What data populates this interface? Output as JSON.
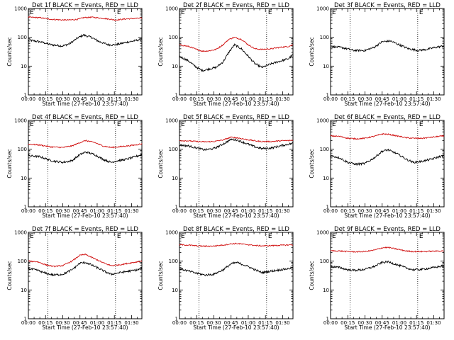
{
  "figure": {
    "x_tick_labels": [
      "00:00",
      "00:15",
      "00:30",
      "00:45",
      "01:00",
      "01:15",
      "01:30"
    ],
    "y_tick_labels": [
      "1",
      "10",
      "100",
      "1000"
    ],
    "x_axis_label": "Start Time (27-Feb-10 23:57:40)",
    "y_axis_label": "Counts/sec",
    "marker_label": "E"
  },
  "chart_data": [
    {
      "type": "line",
      "title": "Det 1f BLACK = Events, RED = LLD",
      "xlabel": "Start Time (27-Feb-10 23:57:40)",
      "ylabel": "Counts/sec",
      "x_unit": "minutes after 00:00",
      "xlim": [
        0,
        99
      ],
      "ylim": [
        1,
        1000
      ],
      "yscale": "log",
      "vlines": [
        17,
        76
      ],
      "series": [
        {
          "color": "#000000",
          "x": [
            0,
            10,
            20,
            30,
            36,
            43,
            48,
            55,
            62,
            70,
            76,
            84,
            92,
            99
          ],
          "values": [
            80,
            70,
            55,
            50,
            60,
            95,
            120,
            100,
            70,
            55,
            55,
            65,
            75,
            85
          ]
        },
        {
          "color": "#d01010",
          "x": [
            0,
            10,
            20,
            30,
            36,
            43,
            48,
            55,
            62,
            70,
            76,
            84,
            92,
            99
          ],
          "values": [
            500,
            480,
            420,
            400,
            400,
            420,
            480,
            500,
            470,
            430,
            400,
            430,
            450,
            460
          ]
        }
      ]
    },
    {
      "type": "line",
      "title": "Det 2f BLACK = Events, RED = LLD",
      "xlabel": "Start Time (27-Feb-10 23:57:40)",
      "ylabel": "Counts/sec",
      "x_unit": "minutes after 00:00",
      "xlim": [
        0,
        99
      ],
      "ylim": [
        1,
        1000
      ],
      "yscale": "log",
      "vlines": [
        17,
        76
      ],
      "series": [
        {
          "color": "#000000",
          "x": [
            0,
            8,
            15,
            20,
            26,
            32,
            38,
            43,
            48,
            54,
            60,
            66,
            72,
            80,
            88,
            95,
            99
          ],
          "values": [
            22,
            15,
            9,
            7,
            8,
            9,
            14,
            30,
            55,
            40,
            22,
            12,
            9,
            12,
            15,
            18,
            25
          ]
        },
        {
          "color": "#d01010",
          "x": [
            0,
            8,
            15,
            20,
            26,
            32,
            38,
            43,
            48,
            54,
            60,
            66,
            72,
            80,
            88,
            95,
            99
          ],
          "values": [
            55,
            48,
            38,
            33,
            34,
            38,
            55,
            85,
            100,
            85,
            55,
            40,
            38,
            40,
            45,
            48,
            55
          ]
        }
      ]
    },
    {
      "type": "line",
      "title": "Det 3f BLACK = Events, RED = LLD",
      "xlabel": "Start Time (27-Feb-10 23:57:40)",
      "ylabel": "Counts/sec",
      "x_unit": "minutes after 00:00",
      "xlim": [
        0,
        99
      ],
      "ylim": [
        1,
        1000
      ],
      "yscale": "log",
      "vlines": [
        17,
        76
      ],
      "series": [
        {
          "color": "#000000",
          "x": [
            0,
            10,
            20,
            30,
            38,
            45,
            52,
            60,
            68,
            76,
            84,
            92,
            99
          ],
          "values": [
            48,
            44,
            35,
            35,
            45,
            70,
            75,
            55,
            40,
            35,
            38,
            45,
            50
          ]
        }
      ]
    },
    {
      "type": "line",
      "title": "Det 4f BLACK = Events, RED = LLD",
      "xlabel": "Start Time (27-Feb-10 23:57:40)",
      "ylabel": "Counts/sec",
      "x_unit": "minutes after 00:00",
      "xlim": [
        0,
        99
      ],
      "ylim": [
        1,
        1000
      ],
      "yscale": "log",
      "vlines": [
        17,
        76
      ],
      "series": [
        {
          "color": "#000000",
          "x": [
            0,
            10,
            20,
            30,
            38,
            45,
            50,
            58,
            65,
            72,
            78,
            86,
            93,
            99
          ],
          "values": [
            60,
            55,
            40,
            35,
            40,
            65,
            80,
            65,
            45,
            35,
            40,
            45,
            55,
            65
          ]
        },
        {
          "color": "#d01010",
          "x": [
            0,
            10,
            20,
            30,
            38,
            45,
            50,
            58,
            65,
            72,
            78,
            86,
            93,
            99
          ],
          "values": [
            150,
            140,
            120,
            115,
            130,
            170,
            200,
            170,
            130,
            115,
            120,
            130,
            140,
            155
          ]
        }
      ]
    },
    {
      "type": "line",
      "title": "Det 5f BLACK = Events, RED = LLD",
      "xlabel": "Start Time (27-Feb-10 23:57:40)",
      "ylabel": "Counts/sec",
      "x_unit": "minutes after 00:00",
      "xlim": [
        0,
        99
      ],
      "ylim": [
        1,
        1000
      ],
      "yscale": "log",
      "vlines": [
        17,
        76
      ],
      "series": [
        {
          "color": "#000000",
          "x": [
            0,
            8,
            15,
            22,
            30,
            38,
            45,
            50,
            58,
            66,
            72,
            80,
            88,
            95,
            99
          ],
          "values": [
            140,
            130,
            110,
            95,
            105,
            150,
            220,
            210,
            160,
            120,
            105,
            110,
            130,
            150,
            160
          ]
        },
        {
          "color": "#d01010",
          "x": [
            0,
            8,
            15,
            22,
            30,
            38,
            45,
            50,
            58,
            66,
            72,
            80,
            88,
            95,
            99
          ],
          "values": [
            200,
            195,
            185,
            180,
            185,
            210,
            260,
            250,
            220,
            195,
            185,
            185,
            195,
            200,
            205
          ]
        }
      ]
    },
    {
      "type": "line",
      "title": "Det 6f BLACK = Events, RED = LLD",
      "xlabel": "Start Time (27-Feb-10 23:57:40)",
      "ylabel": "Counts/sec",
      "x_unit": "minutes after 00:00",
      "xlim": [
        0,
        99
      ],
      "ylim": [
        1,
        1000
      ],
      "yscale": "log",
      "vlines": [
        17,
        76
      ],
      "series": [
        {
          "color": "#000000",
          "x": [
            0,
            8,
            15,
            22,
            30,
            38,
            45,
            50,
            58,
            66,
            72,
            80,
            88,
            95,
            99
          ],
          "values": [
            60,
            50,
            35,
            30,
            32,
            50,
            85,
            95,
            70,
            45,
            35,
            38,
            45,
            55,
            60
          ]
        },
        {
          "color": "#d01010",
          "x": [
            0,
            8,
            15,
            22,
            30,
            38,
            45,
            50,
            58,
            66,
            72,
            80,
            88,
            95,
            99
          ],
          "values": [
            290,
            280,
            240,
            230,
            240,
            280,
            340,
            330,
            290,
            250,
            240,
            240,
            260,
            280,
            290
          ]
        }
      ]
    },
    {
      "type": "line",
      "title": "Det 7f BLACK = Events, RED = LLD",
      "xlabel": "Start Time (27-Feb-10 23:57:40)",
      "ylabel": "Counts/sec",
      "x_unit": "minutes after 00:00",
      "xlim": [
        0,
        99
      ],
      "ylim": [
        1,
        1000
      ],
      "yscale": "log",
      "vlines": [
        17,
        76
      ],
      "series": [
        {
          "color": "#000000",
          "x": [
            0,
            8,
            15,
            22,
            30,
            38,
            45,
            50,
            58,
            66,
            72,
            80,
            88,
            95,
            99
          ],
          "values": [
            55,
            48,
            38,
            33,
            35,
            50,
            85,
            90,
            65,
            45,
            35,
            40,
            45,
            50,
            55
          ]
        },
        {
          "color": "#d01010",
          "x": [
            0,
            8,
            15,
            22,
            30,
            38,
            45,
            50,
            58,
            66,
            72,
            80,
            88,
            95,
            99
          ],
          "values": [
            100,
            95,
            75,
            65,
            70,
            100,
            160,
            170,
            120,
            85,
            70,
            75,
            85,
            95,
            100
          ]
        }
      ]
    },
    {
      "type": "line",
      "title": "Det 8f BLACK = Events, RED = LLD",
      "xlabel": "Start Time (27-Feb-10 23:57:40)",
      "ylabel": "Counts/sec",
      "x_unit": "minutes after 00:00",
      "xlim": [
        0,
        99
      ],
      "ylim": [
        1,
        1000
      ],
      "yscale": "log",
      "vlines": [
        17,
        76
      ],
      "series": [
        {
          "color": "#000000",
          "x": [
            0,
            8,
            15,
            22,
            30,
            38,
            45,
            50,
            58,
            66,
            72,
            80,
            88,
            95,
            99
          ],
          "values": [
            55,
            45,
            38,
            33,
            35,
            50,
            80,
            90,
            70,
            50,
            40,
            45,
            50,
            55,
            60
          ]
        },
        {
          "color": "#d01010",
          "x": [
            0,
            8,
            15,
            22,
            30,
            38,
            45,
            50,
            58,
            66,
            72,
            80,
            88,
            95,
            99
          ],
          "values": [
            370,
            360,
            340,
            330,
            335,
            360,
            400,
            410,
            380,
            350,
            340,
            345,
            355,
            365,
            370
          ]
        }
      ]
    },
    {
      "type": "line",
      "title": "Det 9f BLACK = Events, RED = LLD",
      "xlabel": "Start Time (27-Feb-10 23:57:40)",
      "ylabel": "Counts/sec",
      "x_unit": "minutes after 00:00",
      "xlim": [
        0,
        99
      ],
      "ylim": [
        1,
        1000
      ],
      "yscale": "log",
      "vlines": [
        17,
        76
      ],
      "series": [
        {
          "color": "#000000",
          "x": [
            0,
            8,
            15,
            22,
            30,
            38,
            45,
            50,
            58,
            66,
            72,
            80,
            88,
            95,
            99
          ],
          "values": [
            65,
            60,
            50,
            48,
            52,
            65,
            90,
            95,
            75,
            58,
            50,
            52,
            58,
            65,
            70
          ]
        },
        {
          "color": "#d01010",
          "x": [
            0,
            8,
            15,
            22,
            30,
            38,
            45,
            50,
            58,
            66,
            72,
            80,
            88,
            95,
            99
          ],
          "values": [
            230,
            225,
            215,
            210,
            215,
            240,
            290,
            300,
            260,
            225,
            215,
            215,
            220,
            225,
            230
          ]
        }
      ]
    }
  ]
}
